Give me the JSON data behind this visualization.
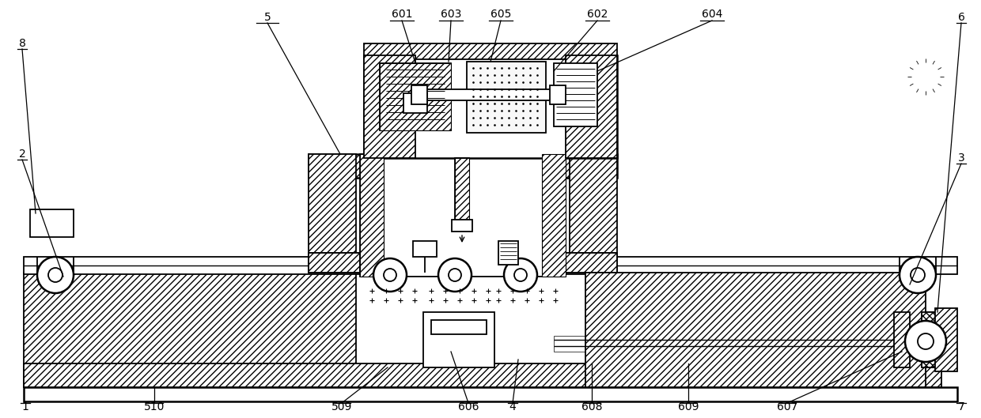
{
  "bg_color": "#ffffff",
  "figsize": [
    12.4,
    5.29
  ],
  "dpi": 100,
  "lw_main": 1.3,
  "lw_thin": 0.8,
  "lw_thick": 1.8
}
